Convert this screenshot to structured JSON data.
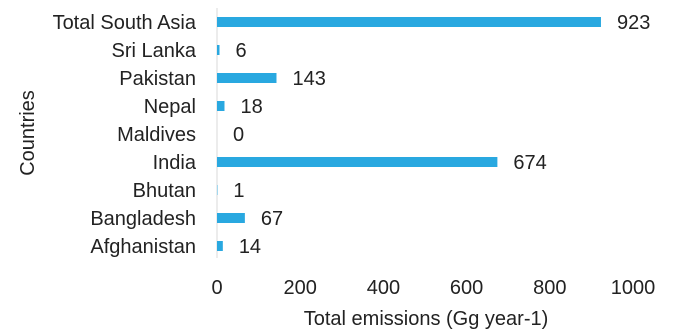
{
  "chart_data": {
    "type": "bar",
    "orientation": "horizontal",
    "categories": [
      "Total South Asia",
      "Sri Lanka",
      "Pakistan",
      "Nepal",
      "Maldives",
      "India",
      "Bhutan",
      "Bangladesh",
      "Afghanistan"
    ],
    "values": [
      923,
      6,
      143,
      18,
      0,
      674,
      1,
      67,
      14
    ],
    "data_labels": [
      "923",
      "6",
      "143",
      "18",
      "0",
      "674",
      "1",
      "67",
      "14"
    ],
    "xlabel": "Total emissions (Gg year-1)",
    "ylabel": "Countries",
    "xlim": [
      0,
      1000
    ],
    "x_ticks": [
      0,
      200,
      400,
      600,
      800,
      1000
    ],
    "grid": false,
    "legend": "none",
    "colors": {
      "bar": "#29A8E0",
      "text": "#222222",
      "axis": "#d9d9d9"
    }
  }
}
